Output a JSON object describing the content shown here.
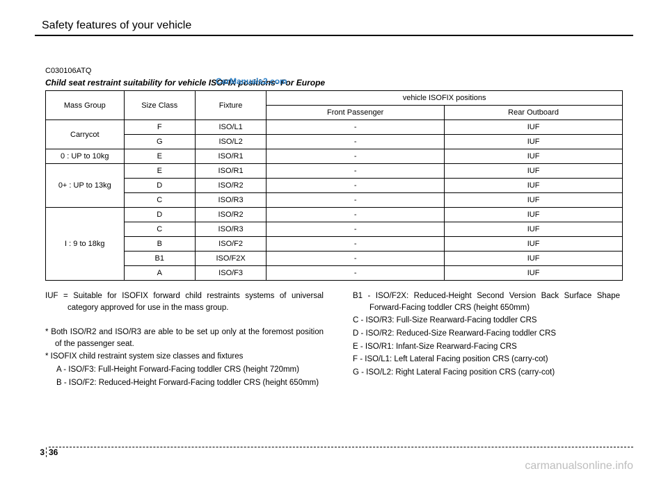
{
  "header": {
    "title": "Safety features of your vehicle"
  },
  "top_watermark": "CarManuals2.com",
  "code": "C030106ATQ",
  "section_title": "Child seat restraint suitability for vehicle ISOFIX positions- For Europe",
  "table": {
    "col_mass": "Mass Group",
    "col_size": "Size Class",
    "col_fixture": "Fixture",
    "col_positions": "vehicle  ISOFIX positions",
    "col_front": "Front Passenger",
    "col_rear": "Rear Outboard",
    "groups": [
      {
        "label": "Carrycot",
        "rows": [
          {
            "size": "F",
            "fixture": "ISO/L1",
            "front": "-",
            "rear": "IUF"
          },
          {
            "size": "G",
            "fixture": "ISO/L2",
            "front": "-",
            "rear": "IUF"
          }
        ]
      },
      {
        "label": "0 : UP to 10kg",
        "rows": [
          {
            "size": "E",
            "fixture": "ISO/R1",
            "front": "-",
            "rear": "IUF"
          }
        ]
      },
      {
        "label": "0+ : UP to 13kg",
        "rows": [
          {
            "size": "E",
            "fixture": "ISO/R1",
            "front": "-",
            "rear": "IUF"
          },
          {
            "size": "D",
            "fixture": "ISO/R2",
            "front": "-",
            "rear": "IUF"
          },
          {
            "size": "C",
            "fixture": "ISO/R3",
            "front": "-",
            "rear": "IUF"
          }
        ]
      },
      {
        "label": "I : 9 to 18kg",
        "rows": [
          {
            "size": "D",
            "fixture": "ISO/R2",
            "front": "-",
            "rear": "IUF"
          },
          {
            "size": "C",
            "fixture": "ISO/R3",
            "front": "-",
            "rear": "IUF"
          },
          {
            "size": "B",
            "fixture": "ISO/F2",
            "front": "-",
            "rear": "IUF"
          },
          {
            "size": "B1",
            "fixture": "ISO/F2X",
            "front": "-",
            "rear": "IUF"
          },
          {
            "size": "A",
            "fixture": "ISO/F3",
            "front": "-",
            "rear": "IUF"
          }
        ]
      }
    ]
  },
  "left_col": {
    "iuf": "IUF = Suitable for ISOFIX forward child restraints systems of universal category approved for use in the mass group.",
    "note1": "* Both ISO/R2 and ISO/R3  are able to be set up only at the foremost position of the passenger seat.",
    "note2": "* ISOFIX child restraint system size classes and fixtures",
    "a": "A - ISO/F3: Full-Height Forward-Facing toddler CRS (height 720mm)",
    "b": "B - ISO/F2: Reduced-Height Forward-Facing toddler CRS (height 650mm)"
  },
  "right_col": {
    "b1": "B1 - ISO/F2X: Reduced-Height Second Version Back Surface Shape Forward-Facing toddler CRS (height 650mm)",
    "c": "C - ISO/R3: Full-Size Rearward-Facing toddler CRS",
    "d": "D - ISO/R2: Reduced-Size Rearward-Facing toddler CRS",
    "e": "E - ISO/R1: Infant-Size Rearward-Facing CRS",
    "f": "F - ISO/L1: Left Lateral Facing position CRS (carry-cot)",
    "g": "G - ISO/L2: Right Lateral Facing position CRS (carry-cot)"
  },
  "page": {
    "chapter": "3",
    "number": "36"
  },
  "bottom_watermark": "carmanualsonline.info"
}
